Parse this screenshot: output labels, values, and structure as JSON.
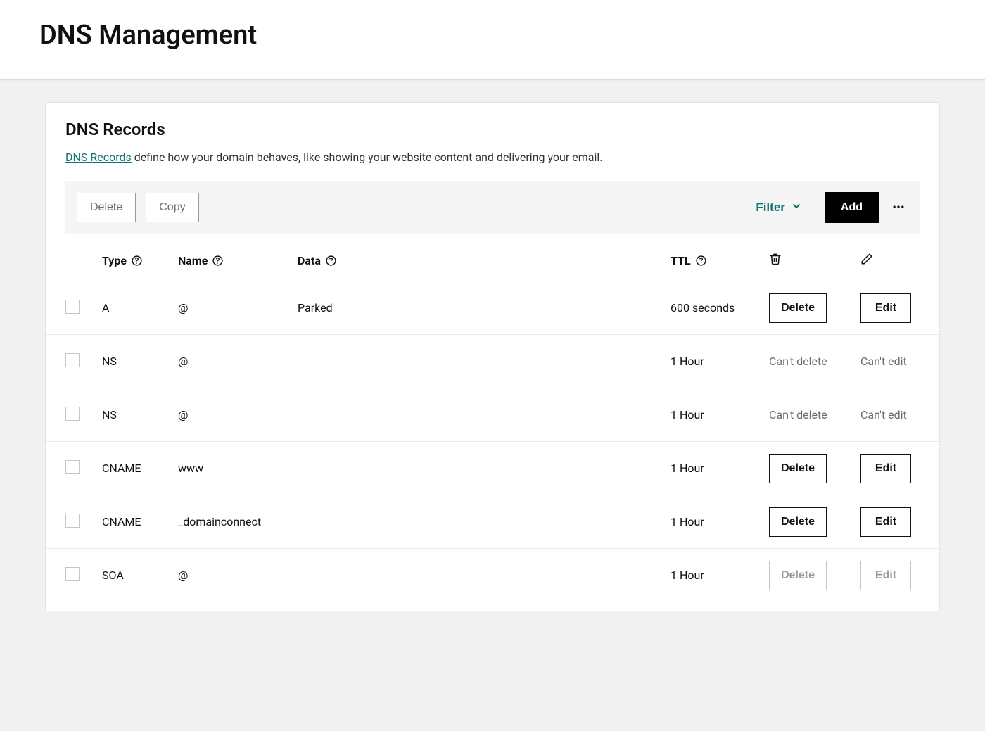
{
  "page": {
    "title": "DNS Management"
  },
  "records_section": {
    "title": "DNS Records",
    "link_text": "DNS Records",
    "desc_suffix": " define how your domain behaves, like showing your website content and delivering your email."
  },
  "toolbar": {
    "delete_label": "Delete",
    "copy_label": "Copy",
    "filter_label": "Filter",
    "add_label": "Add"
  },
  "columns": {
    "type": "Type",
    "name": "Name",
    "data": "Data",
    "ttl": "TTL"
  },
  "labels": {
    "delete": "Delete",
    "edit": "Edit",
    "cant_delete": "Can't delete",
    "cant_edit": "Can't edit"
  },
  "rows": [
    {
      "type": "A",
      "name": "@",
      "data": "Parked",
      "ttl": "600 seconds",
      "delete_mode": "button",
      "edit_mode": "button"
    },
    {
      "type": "NS",
      "name": "@",
      "data": "",
      "ttl": "1 Hour",
      "delete_mode": "locked",
      "edit_mode": "locked"
    },
    {
      "type": "NS",
      "name": "@",
      "data": "",
      "ttl": "1 Hour",
      "delete_mode": "locked",
      "edit_mode": "locked"
    },
    {
      "type": "CNAME",
      "name": "www",
      "data": "",
      "ttl": "1 Hour",
      "delete_mode": "button",
      "edit_mode": "button"
    },
    {
      "type": "CNAME",
      "name": "_domainconnect",
      "data": "",
      "ttl": "1 Hour",
      "delete_mode": "button",
      "edit_mode": "button"
    },
    {
      "type": "SOA",
      "name": "@",
      "data": "",
      "ttl": "1 Hour",
      "delete_mode": "disabled",
      "edit_mode": "disabled"
    }
  ],
  "colors": {
    "accent": "#0f766e",
    "page_bg": "#f1f1f1",
    "card_bg": "#ffffff",
    "toolbar_bg": "#f5f5f5",
    "border": "#e4e4e4",
    "text": "#111111",
    "muted_text": "#6b6b6b"
  }
}
